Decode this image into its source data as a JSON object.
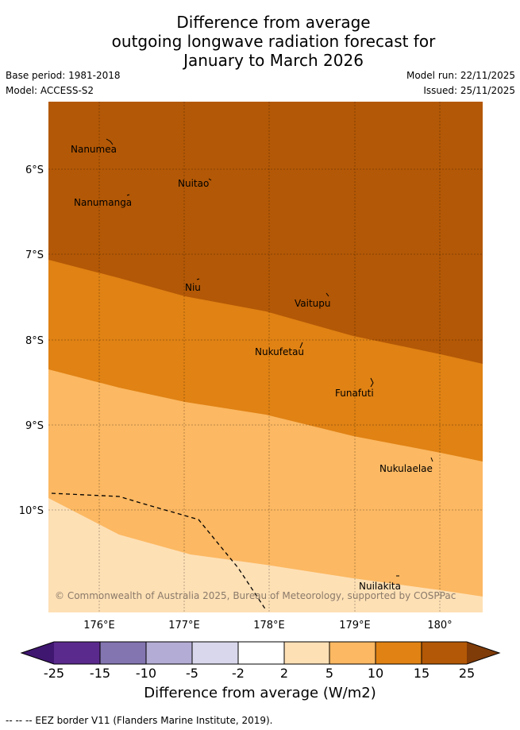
{
  "title_lines": [
    "Difference from average",
    "outgoing longwave radiation forecast for",
    "January to March 2026"
  ],
  "base_period": "Base period: 1981-2018",
  "model": "Model: ACCESS-S2",
  "model_run": "Model run: 22/11/2025",
  "issued": "Issued: 25/11/2025",
  "copyright": "© Commonwealth of Australia 2025, Bureau of Meteorology, supported by COSPPac",
  "lat_ticks": [
    "6°S",
    "7°S",
    "8°S",
    "9°S",
    "10°S"
  ],
  "lon_ticks": [
    "176°E",
    "177°E",
    "178°E",
    "179°E",
    "180°"
  ],
  "islands": [
    {
      "name": "Nanumea"
    },
    {
      "name": "Nuitao"
    },
    {
      "name": "Nanumanga"
    },
    {
      "name": "Niu"
    },
    {
      "name": "Vaitupu"
    },
    {
      "name": "Nukufetau"
    },
    {
      "name": "Funafuti"
    },
    {
      "name": "Nukulaelae"
    },
    {
      "name": "Nuilakita"
    }
  ],
  "colorbar": {
    "title": "Difference from average (W/m2)",
    "tick_labels": [
      "-25",
      "-15",
      "-10",
      "-5",
      "-2",
      "2",
      "5",
      "10",
      "15",
      "25"
    ],
    "colors": [
      "#3f1670",
      "#5a2a8d",
      "#8375b0",
      "#b3acd4",
      "#d8d7eb",
      "#ffffff",
      "#fee0b5",
      "#fcb862",
      "#e08214",
      "#b35806",
      "#7f3b08"
    ]
  },
  "legend_footer": "-- --  -- EEZ border V11 (Flanders Marine Institute, 2019).",
  "map_bands": [
    {
      "range": "15 to 25",
      "color": "#b35806"
    },
    {
      "range": "10 to 15",
      "color": "#e08214"
    },
    {
      "range": "5 to 10",
      "color": "#fcb862"
    },
    {
      "range": "2 to 5",
      "color": "#fee0b5"
    }
  ]
}
